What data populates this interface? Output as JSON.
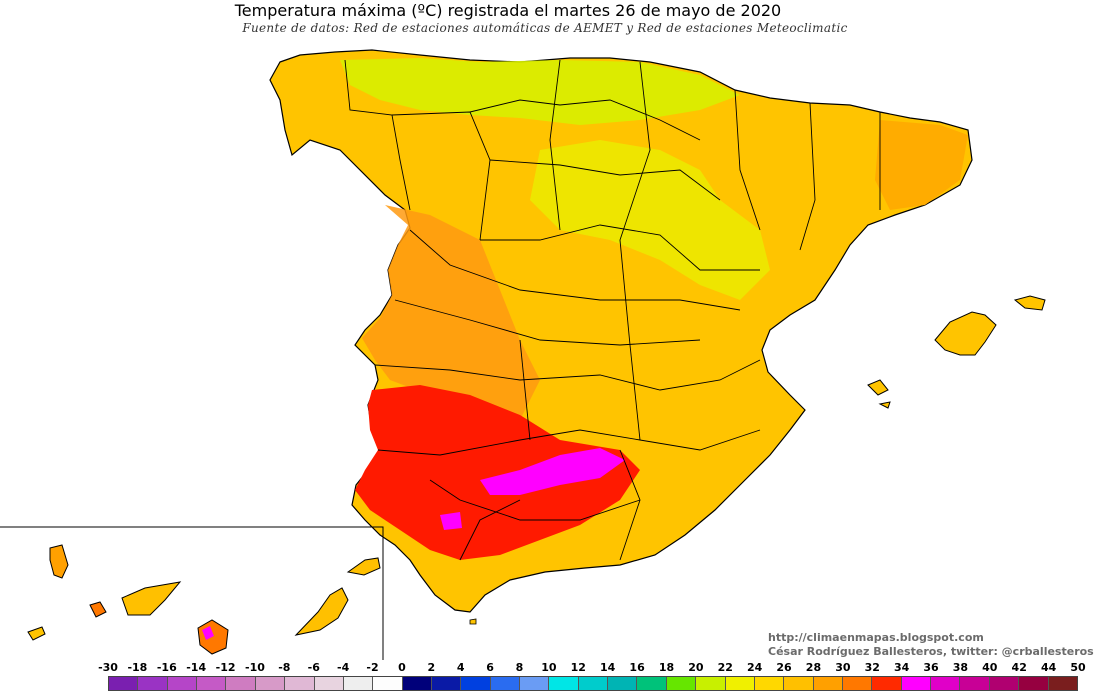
{
  "title": "Temperatura máxima (ºC) registrada el martes 26 de mayo de 2020",
  "subtitle": "Fuente de datos: Red de estaciones automáticas de AEMET y Red de estaciones Meteoclimatic",
  "credits": {
    "blog": "http://climaenmapas.blogspot.com",
    "author": "César Rodríguez Ballesteros, twitter: @crballesteros"
  },
  "legend": {
    "unit": "ºC",
    "ticks": [
      "-30",
      "-18",
      "-16",
      "-14",
      "-12",
      "-10",
      "-8",
      "-6",
      "-4",
      "-2",
      "0",
      "2",
      "4",
      "6",
      "8",
      "10",
      "12",
      "14",
      "16",
      "18",
      "20",
      "22",
      "24",
      "26",
      "28",
      "30",
      "32",
      "34",
      "36",
      "38",
      "40",
      "42",
      "44",
      "50"
    ],
    "colors": [
      "#7a1fb0",
      "#9a33c4",
      "#b545c8",
      "#c55ac6",
      "#cf7cc1",
      "#d79ac8",
      "#e0b8d5",
      "#e8d4e0",
      "#eeeeee",
      "#fdfdfd",
      "#00007a",
      "#0a1aa6",
      "#0040e0",
      "#2a6cf0",
      "#6a9cf4",
      "#00e6e6",
      "#00cccc",
      "#00b4b4",
      "#00c27a",
      "#66e600",
      "#c8f000",
      "#f0f000",
      "#ffd800",
      "#ffc000",
      "#ffa000",
      "#ff7800",
      "#ff2a00",
      "#ff00ff",
      "#e000c8",
      "#c80096",
      "#b00070",
      "#960040",
      "#7a1e1e"
    ]
  }
}
